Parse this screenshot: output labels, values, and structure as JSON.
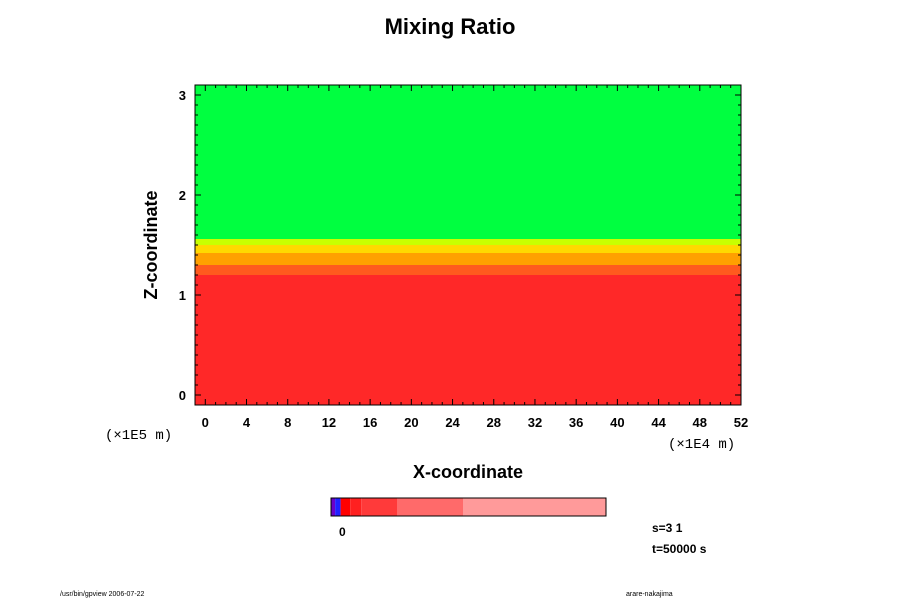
{
  "chart_data": {
    "type": "heatmap",
    "title": "Mixing Ratio",
    "xlabel": "X-coordinate",
    "ylabel": "Z-coordinate",
    "x_scale_note": "(×1E4 m)",
    "z_scale_note": "(×1E5 m)",
    "xlim": [
      -1,
      52
    ],
    "zlim": [
      -0.1,
      3.1
    ],
    "x_ticks": [
      0,
      4,
      8,
      12,
      16,
      20,
      24,
      28,
      32,
      36,
      40,
      44,
      48,
      52
    ],
    "z_ticks": [
      0,
      1,
      2,
      3
    ],
    "regions": [
      {
        "z_from": -0.1,
        "z_to": 1.2,
        "color": "#ff2828"
      },
      {
        "z_from": 1.2,
        "z_to": 1.3,
        "color": "#ff5a1e"
      },
      {
        "z_from": 1.3,
        "z_to": 1.42,
        "color": "#ffa000"
      },
      {
        "z_from": 1.42,
        "z_to": 1.5,
        "color": "#ffd800"
      },
      {
        "z_from": 1.5,
        "z_to": 1.56,
        "color": "#c8ff00"
      },
      {
        "z_from": 1.56,
        "z_to": 3.1,
        "color": "#00ff40"
      }
    ],
    "grid": false
  },
  "colorbar": {
    "label": "0",
    "segments": [
      {
        "color": "#6a00c8",
        "frac": 0.015
      },
      {
        "color": "#2020ff",
        "frac": 0.02
      },
      {
        "color": "#ff0000",
        "frac": 0.035
      },
      {
        "color": "#ff2020",
        "frac": 0.04
      },
      {
        "color": "#ff3a3a",
        "frac": 0.13
      },
      {
        "color": "#ff6a6a",
        "frac": 0.24
      },
      {
        "color": "#ff9a9a",
        "frac": 0.52
      }
    ]
  },
  "info": {
    "s_line": "s=3 1",
    "t_line": "t=50000 s"
  },
  "footer": {
    "left": "/usr/bin/gpview 2006-07-22",
    "right": "arare-nakajima"
  }
}
